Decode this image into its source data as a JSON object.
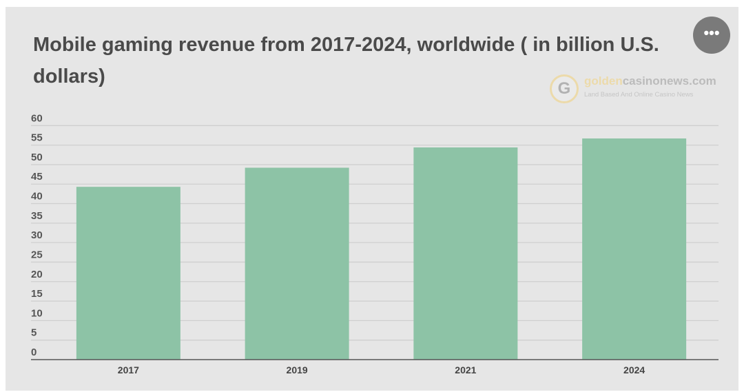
{
  "title": "Mobile gaming revenue from 2017-2024, worldwide ( in billion U.S. dollars)",
  "menu_icon": "more-horizontal-icon",
  "watermark": {
    "name_gold": "golden",
    "name_gray": "casinonews.com",
    "tagline": "Land Based And Online Casino News",
    "mark": "G"
  },
  "chart_data": {
    "type": "bar",
    "title": "Mobile gaming revenue from 2017-2024, worldwide ( in billion U.S. dollars)",
    "categories": [
      "2017",
      "2019",
      "2021",
      "2024"
    ],
    "values": [
      44.3,
      49.2,
      54.4,
      56.7
    ],
    "ylim": [
      0,
      60
    ],
    "yticks": [
      "0",
      "5",
      "10",
      "15",
      "20",
      "25",
      "30",
      "35",
      "40",
      "45",
      "50",
      "55",
      "60"
    ],
    "grid": true,
    "bar_color": "#8dc3a6",
    "legend": "none"
  }
}
